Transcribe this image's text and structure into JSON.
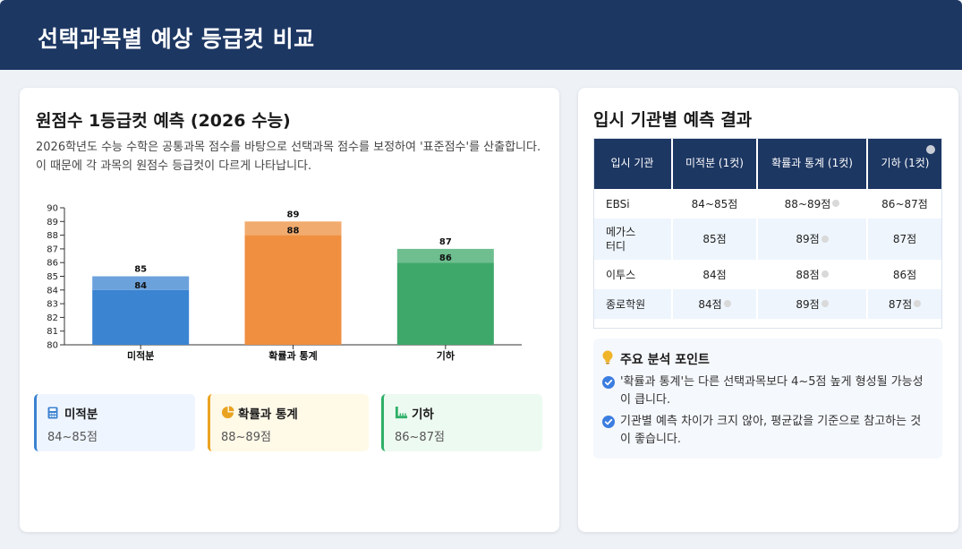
{
  "header": {
    "title": "선택과목별 예상 등급컷 비교"
  },
  "left": {
    "title": "원점수 1등급컷 예측 (2026 수능)",
    "description": "2026학년도 수능 수학은 공통과목 점수를 바탕으로 선택과목 점수를 보정하여 '표준점수'를 산출합니다. 이 때문에 각 과목의 원점수 등급컷이 다르게 나타납니다."
  },
  "chart_data": {
    "type": "bar",
    "categories": [
      "미적분",
      "확률과 통계",
      "기하"
    ],
    "series": [
      {
        "values": [
          84,
          88,
          86
        ]
      },
      {
        "values": [
          85,
          89,
          87
        ]
      }
    ],
    "ylim": [
      80,
      90
    ],
    "yticks": [
      80,
      81,
      82,
      83,
      84,
      85,
      86,
      87,
      88,
      89,
      90
    ],
    "colors": [
      "#3b84d1",
      "#ef8f3f",
      "#3ea86a"
    ],
    "grid": false
  },
  "summary_cards": [
    {
      "title": "미적분",
      "value": "84~85점",
      "icon": "calculator-icon",
      "color": "#3b82d0"
    },
    {
      "title": "확률과 통계",
      "value": "88~89점",
      "icon": "pie-chart-icon",
      "color": "#e9a321"
    },
    {
      "title": "기하",
      "value": "86~87점",
      "icon": "ruler-icon",
      "color": "#2fb068"
    }
  ],
  "right": {
    "title": "입시 기관별 예측 결과",
    "table": {
      "headers": [
        "입시 기관",
        "미적분 (1컷)",
        "확률과 통계 (1컷)",
        "기하 (1컷)"
      ],
      "rows": [
        [
          "EBSi",
          "84~85점",
          "88~89점",
          "86~87점"
        ],
        [
          "메가스터디",
          "85점",
          "89점",
          "87점"
        ],
        [
          "이투스",
          "84점",
          "88점",
          "86점"
        ],
        [
          "종로학원",
          "84점",
          "89점",
          "87점"
        ]
      ]
    },
    "insights": {
      "title": "주요 분석 포인트",
      "items": [
        "'확률과 통계'는 다른 선택과목보다 4~5점 높게 형성될 가능성이 큽니다.",
        "기관별 예측 차이가 크지 않아, 평균값을 기준으로 참고하는 것이 좋습니다."
      ]
    }
  }
}
